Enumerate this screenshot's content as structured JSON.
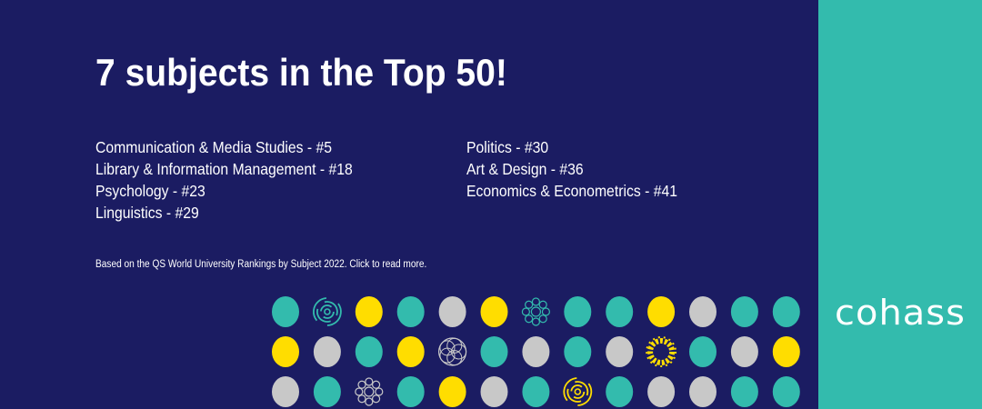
{
  "headline": "7 subjects in the Top 50!",
  "rankings_left": [
    "Communication & Media Studies - #5",
    "Library & Information Management - #18",
    "Psychology - #23",
    "Linguistics - #29"
  ],
  "rankings_right": [
    "Politics - #30",
    "Art & Design - #36",
    "Economics & Econometrics - #41"
  ],
  "footnote": "Based on the QS World University Rankings by Subject 2022. Click to read more.",
  "logo_text": "cohass",
  "colors": {
    "background": "#1b1c62",
    "teal": "#33bbad",
    "yellow": "#ffdd00",
    "gray": "#c8c8c8"
  },
  "dot_pattern": [
    [
      "teal",
      "spiral:teal",
      "yellow",
      "teal",
      "gray",
      "yellow",
      "flower:teal",
      "teal",
      "teal",
      "yellow",
      "gray",
      "teal",
      "teal"
    ],
    [
      "yellow",
      "gray",
      "teal",
      "yellow",
      "geo:gray",
      "teal",
      "gray",
      "teal",
      "gray",
      "burst:yellow",
      "teal",
      "gray",
      "yellow"
    ],
    [
      "gray",
      "teal",
      "flower:gray",
      "teal",
      "yellow",
      "gray",
      "teal",
      "spiral:yellow",
      "teal",
      "gray",
      "gray",
      "teal",
      "teal"
    ]
  ]
}
